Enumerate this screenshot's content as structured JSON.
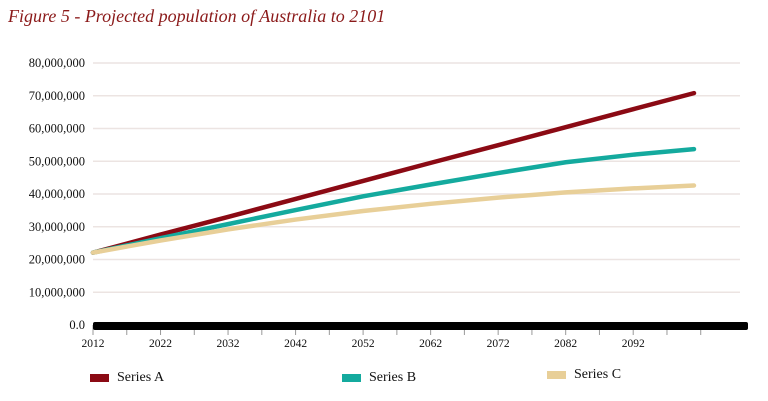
{
  "chart_data": {
    "type": "line",
    "title": "Figure 5 - Projected population of Australia to 2101",
    "xlabel": "",
    "ylabel": "",
    "xlim": [
      2012,
      2109
    ],
    "ylim": [
      0,
      80000000
    ],
    "grid": true,
    "legend_position": "bottom",
    "x_ticks": [
      "2012",
      "2022",
      "2032",
      "2042",
      "2052",
      "2062",
      "2072",
      "2082",
      "2092"
    ],
    "y_ticks": [
      {
        "value": 0,
        "label": "0.0"
      },
      {
        "value": 10000000,
        "label": "10,000,000"
      },
      {
        "value": 20000000,
        "label": "20,000,000"
      },
      {
        "value": 30000000,
        "label": "30,000,000"
      },
      {
        "value": 40000000,
        "label": "40,000,000"
      },
      {
        "value": 50000000,
        "label": "50,000,000"
      },
      {
        "value": 60000000,
        "label": "60,000,000"
      },
      {
        "value": 70000000,
        "label": "70,000,000"
      },
      {
        "value": 80000000,
        "label": "80,000,000"
      }
    ],
    "x": [
      2012,
      2022,
      2032,
      2042,
      2052,
      2062,
      2072,
      2082,
      2092,
      2101
    ],
    "series": [
      {
        "name": "Series A",
        "color": "#8b0a14",
        "values": [
          22100000,
          27600000,
          33000000,
          38500000,
          44000000,
          49500000,
          54900000,
          60400000,
          65900000,
          70800000
        ]
      },
      {
        "name": "Series B",
        "color": "#14aa9e",
        "values": [
          22100000,
          26500000,
          30800000,
          35100000,
          39300000,
          42900000,
          46400000,
          49700000,
          52000000,
          53700000
        ]
      },
      {
        "name": "Series C",
        "color": "#e8cf98",
        "values": [
          22100000,
          25800000,
          29200000,
          32200000,
          34800000,
          37000000,
          38900000,
          40500000,
          41700000,
          42600000
        ]
      }
    ]
  }
}
